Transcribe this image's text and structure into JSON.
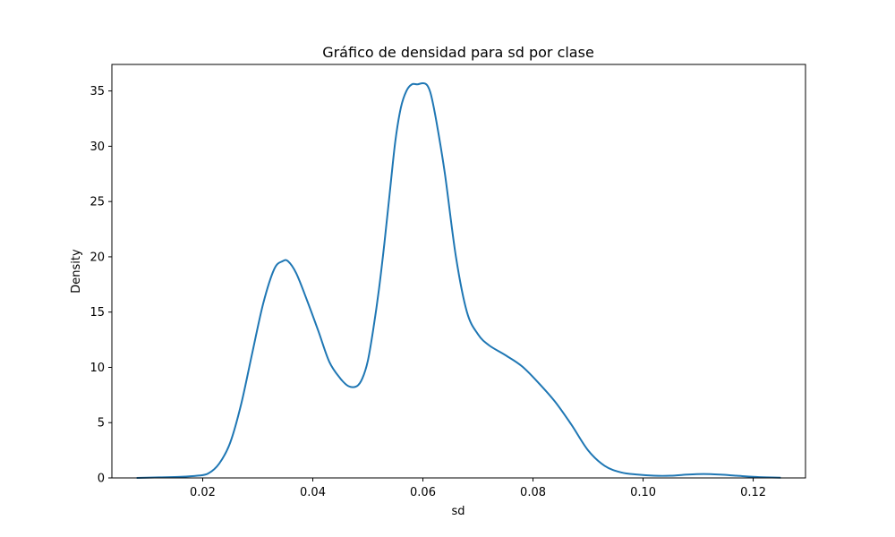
{
  "chart_data": {
    "type": "line",
    "title": "Gráfico de densidad para sd por clase",
    "xlabel": "sd",
    "ylabel": "Density",
    "xlim": [
      0.0035,
      0.1295
    ],
    "ylim": [
      0,
      37.4
    ],
    "xticks": [
      0.02,
      0.04,
      0.06,
      0.08,
      0.1,
      0.12
    ],
    "xtick_labels": [
      "0.02",
      "0.04",
      "0.06",
      "0.08",
      "0.10",
      "0.12"
    ],
    "yticks": [
      0,
      5,
      10,
      15,
      20,
      25,
      30,
      35
    ],
    "ytick_labels": [
      "0",
      "5",
      "10",
      "15",
      "20",
      "25",
      "30",
      "35"
    ],
    "grid": false,
    "legend": "none",
    "series": [
      {
        "color": "#1f77b4",
        "x": [
          0.008,
          0.012,
          0.016,
          0.019,
          0.021,
          0.023,
          0.025,
          0.027,
          0.029,
          0.031,
          0.033,
          0.0345,
          0.0355,
          0.037,
          0.039,
          0.041,
          0.043,
          0.045,
          0.0465,
          0.048,
          0.049,
          0.05,
          0.051,
          0.052,
          0.053,
          0.054,
          0.055,
          0.056,
          0.057,
          0.058,
          0.059,
          0.06,
          0.0608,
          0.0615,
          0.0625,
          0.064,
          0.066,
          0.068,
          0.07,
          0.072,
          0.075,
          0.078,
          0.081,
          0.084,
          0.087,
          0.09,
          0.093,
          0.096,
          0.099,
          0.102,
          0.105,
          0.108,
          0.111,
          0.114,
          0.117,
          0.12,
          0.1225,
          0.125
        ],
        "y": [
          0.0,
          0.05,
          0.1,
          0.2,
          0.4,
          1.3,
          3.2,
          6.7,
          11.3,
          15.8,
          18.9,
          19.6,
          19.6,
          18.5,
          16.0,
          13.3,
          10.5,
          9.0,
          8.3,
          8.3,
          9.0,
          10.6,
          13.5,
          17.0,
          21.2,
          25.9,
          30.5,
          33.5,
          35.0,
          35.6,
          35.6,
          35.7,
          35.5,
          34.6,
          32.1,
          27.5,
          20.0,
          15.0,
          13.0,
          12.0,
          11.1,
          10.1,
          8.6,
          6.9,
          4.8,
          2.5,
          1.1,
          0.5,
          0.3,
          0.2,
          0.2,
          0.3,
          0.35,
          0.3,
          0.2,
          0.1,
          0.05,
          0.02
        ]
      }
    ]
  }
}
